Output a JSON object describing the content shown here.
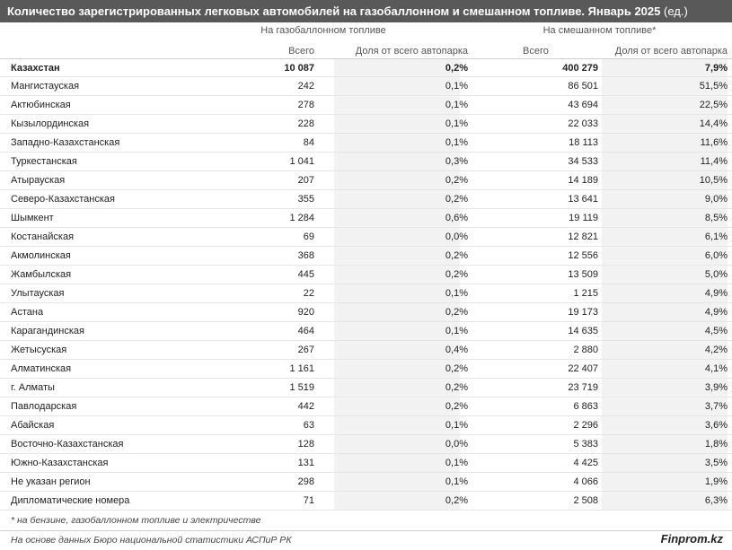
{
  "title": {
    "main": "Количество зарегистрированных легковых автомобилей на газобаллонном и смешанном топливе. Январь 2025",
    "unit": "(ед.)"
  },
  "groups": {
    "gas": "На газобаллонном топливе",
    "mixed": "На смешанном топливе*"
  },
  "columns": {
    "gas_total": "Всего",
    "gas_share": "Доля от всего автопарка",
    "mixed_total": "Всего",
    "mixed_share": "Доля от всего автопарка"
  },
  "rows": [
    {
      "name": "Казахстан",
      "gas_total": "10 087",
      "gas_share": "0,2%",
      "mixed_total": "400 279",
      "mixed_share": "7,9%"
    },
    {
      "name": "Мангистауская",
      "gas_total": "242",
      "gas_share": "0,1%",
      "mixed_total": "86 501",
      "mixed_share": "51,5%"
    },
    {
      "name": "Актюбинская",
      "gas_total": "278",
      "gas_share": "0,1%",
      "mixed_total": "43 694",
      "mixed_share": "22,5%"
    },
    {
      "name": "Кызылординская",
      "gas_total": "228",
      "gas_share": "0,1%",
      "mixed_total": "22 033",
      "mixed_share": "14,4%"
    },
    {
      "name": "Западно-Казахстанская",
      "gas_total": "84",
      "gas_share": "0,1%",
      "mixed_total": "18 113",
      "mixed_share": "11,6%"
    },
    {
      "name": "Туркестанская",
      "gas_total": "1 041",
      "gas_share": "0,3%",
      "mixed_total": "34 533",
      "mixed_share": "11,4%"
    },
    {
      "name": "Атырауская",
      "gas_total": "207",
      "gas_share": "0,2%",
      "mixed_total": "14 189",
      "mixed_share": "10,5%"
    },
    {
      "name": "Северо-Казахстанская",
      "gas_total": "355",
      "gas_share": "0,2%",
      "mixed_total": "13 641",
      "mixed_share": "9,0%"
    },
    {
      "name": "Шымкент",
      "gas_total": "1 284",
      "gas_share": "0,6%",
      "mixed_total": "19 119",
      "mixed_share": "8,5%"
    },
    {
      "name": "Костанайская",
      "gas_total": "69",
      "gas_share": "0,0%",
      "mixed_total": "12 821",
      "mixed_share": "6,1%"
    },
    {
      "name": "Акмолинская",
      "gas_total": "368",
      "gas_share": "0,2%",
      "mixed_total": "12 556",
      "mixed_share": "6,0%"
    },
    {
      "name": "Жамбылская",
      "gas_total": "445",
      "gas_share": "0,2%",
      "mixed_total": "13 509",
      "mixed_share": "5,0%"
    },
    {
      "name": "Улытауская",
      "gas_total": "22",
      "gas_share": "0,1%",
      "mixed_total": "1 215",
      "mixed_share": "4,9%"
    },
    {
      "name": "Астана",
      "gas_total": "920",
      "gas_share": "0,2%",
      "mixed_total": "19 173",
      "mixed_share": "4,9%"
    },
    {
      "name": "Карагандинская",
      "gas_total": "464",
      "gas_share": "0,1%",
      "mixed_total": "14 635",
      "mixed_share": "4,5%"
    },
    {
      "name": "Жетысуская",
      "gas_total": "267",
      "gas_share": "0,4%",
      "mixed_total": "2 880",
      "mixed_share": "4,2%"
    },
    {
      "name": "Алматинская",
      "gas_total": "1 161",
      "gas_share": "0,2%",
      "mixed_total": "22 407",
      "mixed_share": "4,1%"
    },
    {
      "name": "г. Алматы",
      "gas_total": "1 519",
      "gas_share": "0,2%",
      "mixed_total": "23 719",
      "mixed_share": "3,9%"
    },
    {
      "name": "Павлодарская",
      "gas_total": "442",
      "gas_share": "0,2%",
      "mixed_total": "6 863",
      "mixed_share": "3,7%"
    },
    {
      "name": "Абайская",
      "gas_total": "63",
      "gas_share": "0,1%",
      "mixed_total": "2 296",
      "mixed_share": "3,6%"
    },
    {
      "name": "Восточно-Казахстанская",
      "gas_total": "128",
      "gas_share": "0,0%",
      "mixed_total": "5 383",
      "mixed_share": "1,8%"
    },
    {
      "name": "Южно-Казахстанская",
      "gas_total": "131",
      "gas_share": "0,1%",
      "mixed_total": "4 425",
      "mixed_share": "3,5%"
    },
    {
      "name": "Не указан регион",
      "gas_total": "298",
      "gas_share": "0,1%",
      "mixed_total": "4 066",
      "mixed_share": "1,9%"
    },
    {
      "name": "Дипломатические номера",
      "gas_total": "71",
      "gas_share": "0,2%",
      "mixed_total": "2 508",
      "mixed_share": "6,3%"
    }
  ],
  "footnote": "* на бензине, газобаллонном топливе и электричестве",
  "source": "На основе данных Бюро национальной статистики АСПиР РК",
  "brand": "Finprom.kz",
  "colors": {
    "title_bg": "#595959",
    "stripe": "#f2f2f2"
  }
}
